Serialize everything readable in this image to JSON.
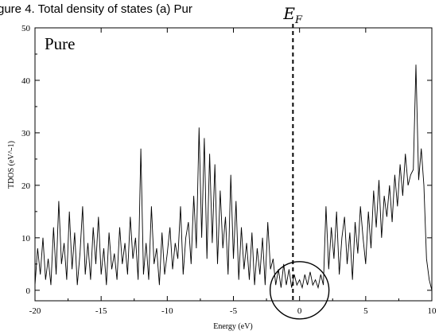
{
  "caption_fragment": "gure 4. Total density of states (a) Pur",
  "chart_data": {
    "type": "line",
    "panel_label": "Pure",
    "xlabel": "Energy (eV)",
    "ylabel": "TDOS (eV^-1)",
    "xlim": [
      -20,
      10
    ],
    "ylim": [
      -2,
      50
    ],
    "xticks": [
      "-20",
      "-15",
      "-10",
      "-5",
      "0",
      "5",
      "10"
    ],
    "yticks": [
      "0",
      "10",
      "20",
      "30",
      "40",
      "50"
    ],
    "xtick_values": [
      -20,
      -15,
      -10,
      -5,
      0,
      5,
      10
    ],
    "ytick_values": [
      0,
      10,
      20,
      30,
      40,
      50
    ],
    "grid": false,
    "legend": "none",
    "fermi_level": {
      "label": "E",
      "subscript": "F",
      "x": -0.5,
      "style": "dashed"
    },
    "annotation": {
      "shape": "ellipse",
      "center_x": 0.0,
      "center_y": 0.0,
      "note": "circled region near the Fermi level"
    },
    "series": [
      {
        "x": [
          -20,
          -19.8,
          -19.6,
          -19.4,
          -19.2,
          -19,
          -18.8,
          -18.6,
          -18.4,
          -18.2,
          -18,
          -17.8,
          -17.6,
          -17.4,
          -17.2,
          -17,
          -16.8,
          -16.6,
          -16.4,
          -16.2,
          -16,
          -15.8,
          -15.6,
          -15.4,
          -15.2,
          -15,
          -14.8,
          -14.6,
          -14.4,
          -14.2,
          -14,
          -13.8,
          -13.6,
          -13.4,
          -13.2,
          -13,
          -12.8,
          -12.6,
          -12.4,
          -12.2,
          -12,
          -11.8,
          -11.6,
          -11.4,
          -11.2,
          -11,
          -10.8,
          -10.6,
          -10.4,
          -10.2,
          -10,
          -9.8,
          -9.6,
          -9.4,
          -9.2,
          -9,
          -8.8,
          -8.6,
          -8.4,
          -8.2,
          -8,
          -7.8,
          -7.6,
          -7.4,
          -7.2,
          -7,
          -6.8,
          -6.6,
          -6.4,
          -6.2,
          -6,
          -5.8,
          -5.6,
          -5.4,
          -5.2,
          -5,
          -4.8,
          -4.6,
          -4.4,
          -4.2,
          -4,
          -3.8,
          -3.6,
          -3.4,
          -3.2,
          -3,
          -2.8,
          -2.6,
          -2.4,
          -2.2,
          -2,
          -1.8,
          -1.6,
          -1.4,
          -1.2,
          -1,
          -0.8,
          -0.6,
          -0.4,
          -0.2,
          0,
          0.2,
          0.4,
          0.6,
          0.8,
          1,
          1.2,
          1.4,
          1.6,
          1.8,
          2,
          2.2,
          2.4,
          2.6,
          2.8,
          3,
          3.2,
          3.4,
          3.6,
          3.8,
          4,
          4.2,
          4.4,
          4.6,
          4.8,
          5,
          5.2,
          5.4,
          5.6,
          5.8,
          6,
          6.2,
          6.4,
          6.6,
          6.8,
          7,
          7.2,
          7.4,
          7.6,
          7.8,
          8,
          8.2,
          8.4,
          8.6,
          8.8,
          9,
          9.2,
          9.4,
          9.6,
          9.8,
          10
        ],
        "y": [
          1,
          8,
          3,
          10,
          2,
          6,
          1,
          12,
          3,
          17,
          5,
          9,
          2,
          15,
          4,
          11,
          1,
          7,
          16,
          3,
          9,
          2,
          12,
          5,
          14,
          3,
          8,
          1,
          11,
          4,
          7,
          2,
          12,
          5,
          9,
          3,
          14,
          6,
          10,
          2,
          27,
          3,
          9,
          2,
          16,
          5,
          8,
          1,
          11,
          3,
          7,
          12,
          4,
          9,
          6,
          16,
          3,
          10,
          13,
          5,
          18,
          8,
          31,
          10,
          29,
          6,
          26,
          9,
          24,
          5,
          19,
          8,
          14,
          3,
          22,
          6,
          17,
          2,
          12,
          4,
          9,
          2,
          11,
          1,
          8,
          3,
          10,
          1,
          13,
          4,
          6,
          1,
          4,
          0.5,
          5,
          1,
          4,
          0.5,
          3,
          1,
          2,
          0.5,
          3,
          1,
          3.5,
          1,
          2,
          0.5,
          3,
          1,
          16,
          4,
          12,
          6,
          15,
          3,
          10,
          14,
          5,
          11,
          2,
          13,
          7,
          16,
          10,
          5,
          15,
          8,
          19,
          12,
          21,
          10,
          18,
          14,
          20,
          13,
          22,
          16,
          24,
          18,
          26,
          20,
          22,
          23,
          43,
          21,
          27,
          20,
          6,
          2,
          0
        ]
      }
    ]
  }
}
